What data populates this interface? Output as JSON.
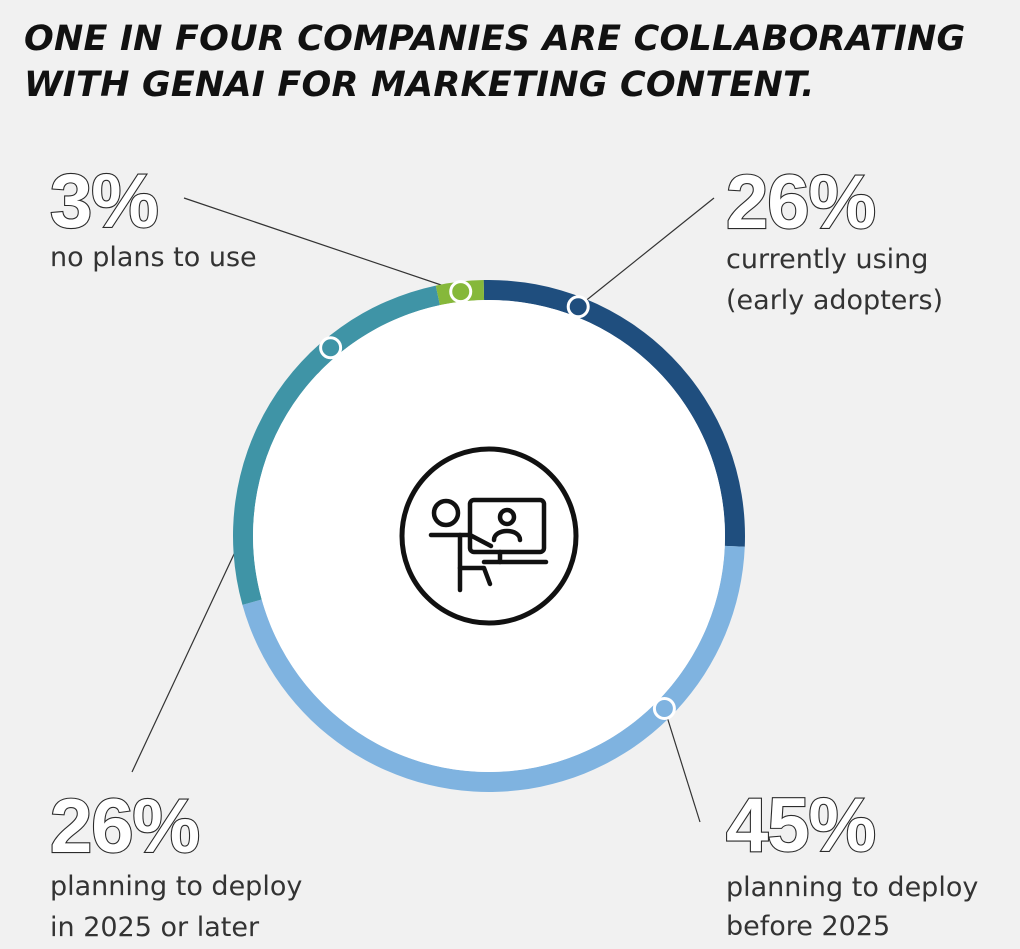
{
  "headline": {
    "line1": "ONE IN FOUR COMPANIES ARE COLLABORATING",
    "line2": "WITH GENAI FOR MARKETING CONTENT."
  },
  "center_icon": "person-at-video-call-screen-icon",
  "colors": {
    "background": "#f1f1f1",
    "ring_inner": "#ffffff",
    "icon_stroke": "#111111"
  },
  "chart_data": {
    "type": "pie",
    "style": "donut",
    "unit": "%",
    "slices": [
      {
        "key": "currently-using",
        "value": 26,
        "label": "26%",
        "line1": "currently using",
        "line2": "(early adopters)",
        "color": "#1f4e7e"
      },
      {
        "key": "before-2025",
        "value": 45,
        "label": "45%",
        "line1": "planning to deploy",
        "line2": "before 2025",
        "color": "#7fb3e0"
      },
      {
        "key": "2025-or-later",
        "value": 26,
        "label": "26%",
        "line1": "planning to deploy",
        "line2": "in 2025 or later",
        "color": "#3f94a6"
      },
      {
        "key": "no-plans",
        "value": 3,
        "label": "3%",
        "line1": "no plans to use",
        "line2": "",
        "color": "#86b83a"
      }
    ]
  }
}
